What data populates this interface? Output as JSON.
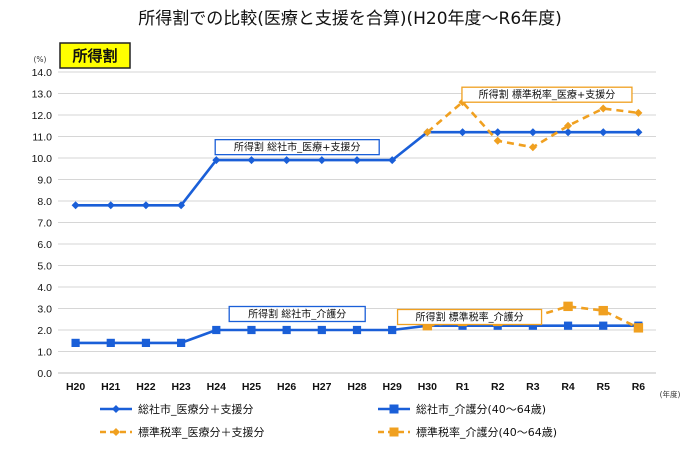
{
  "page": {
    "title": "所得割での比較(医療と支援を合算)(H20年度～R6年度)",
    "badge": "所得割"
  },
  "chart_data": {
    "type": "line",
    "categories": [
      "H20",
      "H21",
      "H22",
      "H23",
      "H24",
      "H25",
      "H26",
      "H27",
      "H28",
      "H29",
      "H30",
      "R1",
      "R2",
      "R3",
      "R4",
      "R5",
      "R6"
    ],
    "ylim": [
      0,
      14
    ],
    "ytick_step": 1,
    "y_unit": "(%)",
    "x_unit": "(年度)",
    "grid": true,
    "series": [
      {
        "name": "総社市_医療分＋支援分",
        "color": "#1a5fd8",
        "dash": false,
        "marker": "diamond",
        "values": [
          7.8,
          7.8,
          7.8,
          7.8,
          9.9,
          9.9,
          9.9,
          9.9,
          9.9,
          9.9,
          11.2,
          11.2,
          11.2,
          11.2,
          11.2,
          11.2,
          11.2
        ]
      },
      {
        "name": "総社市_介護分(40～64歳)",
        "color": "#1a5fd8",
        "dash": false,
        "marker": "square",
        "values": [
          1.4,
          1.4,
          1.4,
          1.4,
          2.0,
          2.0,
          2.0,
          2.0,
          2.0,
          2.0,
          2.2,
          2.2,
          2.2,
          2.2,
          2.2,
          2.2,
          2.2
        ]
      },
      {
        "name": "標準税率_医療分＋支援分",
        "color": "#f0a020",
        "dash": true,
        "marker": "diamond",
        "values": [
          null,
          null,
          null,
          null,
          null,
          null,
          null,
          null,
          null,
          null,
          11.2,
          12.6,
          10.8,
          10.5,
          11.5,
          12.3,
          12.1
        ]
      },
      {
        "name": "標準税率_介護分(40～64歳)",
        "color": "#f0a020",
        "dash": true,
        "marker": "square",
        "values": [
          null,
          null,
          null,
          null,
          null,
          null,
          null,
          null,
          null,
          null,
          2.2,
          2.4,
          2.4,
          2.6,
          3.1,
          2.9,
          2.1
        ]
      }
    ],
    "annotations": [
      {
        "text": "所得割 総社市_医療+支援分",
        "color": "#1a5fd8"
      },
      {
        "text": "所得割 標準税率_医療+支援分",
        "color": "#f0a020"
      },
      {
        "text": "所得割 総社市_介護分",
        "color": "#1a5fd8"
      },
      {
        "text": "所得割 標準税率_介護分",
        "color": "#f0a020"
      }
    ]
  }
}
